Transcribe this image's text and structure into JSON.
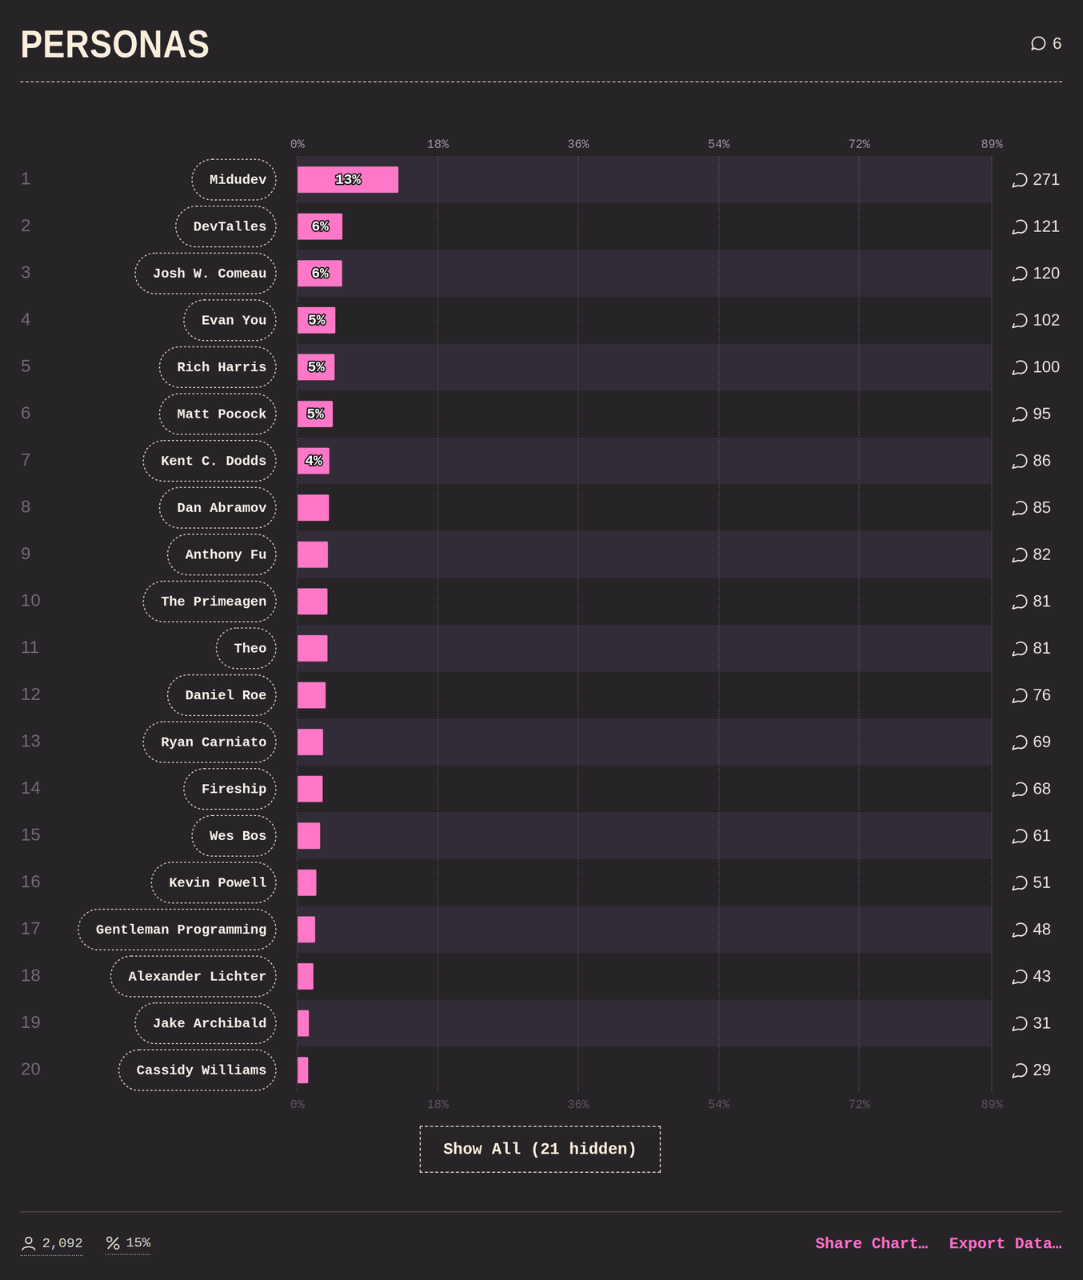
{
  "chart_data": {
    "type": "bar",
    "title": "PERSONAS",
    "comment_total": 6,
    "orientation": "horizontal",
    "ranks": [
      1,
      2,
      3,
      4,
      5,
      6,
      7,
      8,
      9,
      10,
      11,
      12,
      13,
      14,
      15,
      16,
      17,
      18,
      19,
      20
    ],
    "categories": [
      "Midudev",
      "DevTalles",
      "Josh W. Comeau",
      "Evan You",
      "Rich Harris",
      "Matt Pocock",
      "Kent C. Dodds",
      "Dan Abramov",
      "Anthony Fu",
      "The Primeagen",
      "Theo",
      "Daniel Roe",
      "Ryan Carniato",
      "Fireship",
      "Wes Bos",
      "Kevin Powell",
      "Gentleman Programming",
      "Alexander Lichter",
      "Jake Archibald",
      "Cassidy Williams"
    ],
    "values": [
      12.95,
      5.78,
      5.74,
      4.88,
      4.78,
      4.54,
      4.11,
      4.06,
      3.92,
      3.87,
      3.87,
      3.63,
      3.3,
      3.25,
      2.92,
      2.44,
      2.29,
      2.06,
      1.48,
      1.39
    ],
    "value_labels": [
      "13%",
      "6%",
      "6%",
      "5%",
      "5%",
      "5%",
      "4%",
      null,
      null,
      null,
      null,
      null,
      null,
      null,
      null,
      null,
      null,
      null,
      null,
      null
    ],
    "counts": [
      271,
      121,
      120,
      102,
      100,
      95,
      86,
      85,
      82,
      81,
      81,
      76,
      69,
      68,
      61,
      51,
      48,
      43,
      31,
      29
    ],
    "color": "#ff78c8",
    "xlim": [
      0,
      89
    ],
    "xticks": [
      {
        "value": 0,
        "label": "0%"
      },
      {
        "value": 18,
        "label": "18%"
      },
      {
        "value": 36,
        "label": "36%"
      },
      {
        "value": 54,
        "label": "54%"
      },
      {
        "value": 72,
        "label": "72%"
      },
      {
        "value": 89,
        "label": "89%"
      }
    ],
    "grid": true,
    "data_labels": true,
    "button": "Show All (21 hidden)",
    "footer": {
      "respondents": "2,092",
      "percentage": "15%",
      "links": [
        "Share Chart…",
        "Export Data…"
      ]
    }
  }
}
